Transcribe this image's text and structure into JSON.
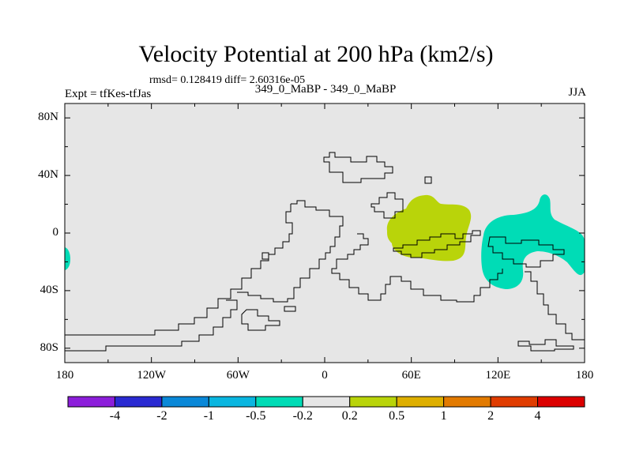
{
  "header": {
    "title": "Velocity Potential at 200 hPa (km2/s)",
    "stats": "rmsd= 0.128419 diff= 2.60316e-05",
    "subtitle": "349_0_MaBP - 349_0_MaBP",
    "experiment": "Expt = tfKes-tfJas",
    "season": "JJA"
  },
  "map": {
    "lon_range": [
      -180,
      180
    ],
    "lat_range": [
      -90,
      90
    ],
    "background_color": "#e6e6e6",
    "lat_ticks": [
      {
        "value": 80,
        "label": "80N"
      },
      {
        "value": 40,
        "label": "40N"
      },
      {
        "value": 0,
        "label": "0"
      },
      {
        "value": -40,
        "label": "40S"
      },
      {
        "value": -80,
        "label": "80S"
      }
    ],
    "lon_ticks": [
      {
        "value": -180,
        "label": "180"
      },
      {
        "value": -120,
        "label": "120W"
      },
      {
        "value": -60,
        "label": "60W"
      },
      {
        "value": 0,
        "label": "0"
      },
      {
        "value": 60,
        "label": "60E"
      },
      {
        "value": 120,
        "label": "120E"
      },
      {
        "value": 180,
        "label": "180"
      }
    ],
    "anomaly_regions": [
      {
        "level": "0.2 to 0.5",
        "color": "#b9d40a",
        "location": "Africa / Indian Ocean"
      },
      {
        "level": "-0.5 to -0.2",
        "color": "#00dcb6",
        "location": "Maritime Continent / West Pacific"
      },
      {
        "level": "-0.5 to -0.2",
        "color": "#00dcb6",
        "location": "dateline edge"
      }
    ]
  },
  "colorbar": {
    "colors": [
      "#8c1eda",
      "#2a2ad2",
      "#0a88d8",
      "#0ab6e0",
      "#00dcb6",
      "#e6e6e6",
      "#b9d40a",
      "#deaf00",
      "#e27a00",
      "#e03c00",
      "#dc0000"
    ],
    "labels": [
      "-4",
      "-2",
      "-1",
      "-0.5",
      "-0.2",
      "0.2",
      "0.5",
      "1",
      "2",
      "4"
    ]
  }
}
